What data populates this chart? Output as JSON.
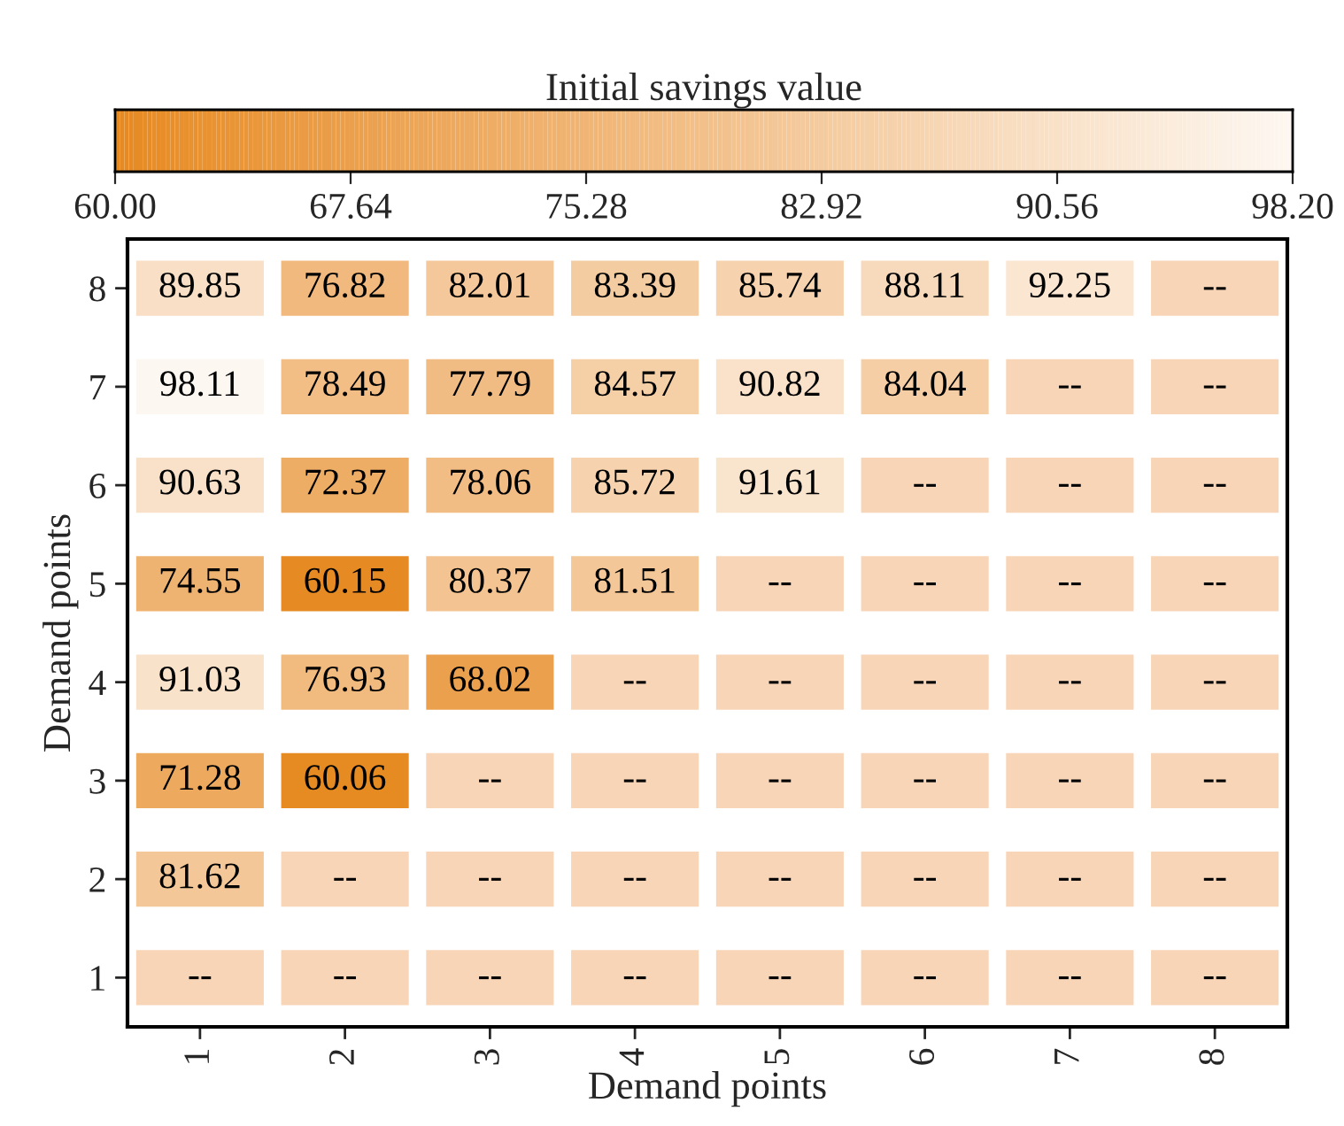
{
  "chart_data": {
    "type": "heatmap",
    "xlabel": "Demand points",
    "ylabel": "Demand points",
    "clabel": "Initial savings value",
    "categories": [
      "1",
      "2",
      "3",
      "4",
      "5",
      "6",
      "7",
      "8"
    ],
    "y_categories": [
      "8",
      "7",
      "6",
      "5",
      "4",
      "3",
      "2",
      "1"
    ],
    "cells": [
      [
        89.85,
        76.82,
        82.01,
        83.39,
        85.74,
        88.11,
        92.25,
        null
      ],
      [
        98.11,
        78.49,
        77.79,
        84.57,
        90.82,
        84.04,
        null,
        null
      ],
      [
        90.63,
        72.37,
        78.06,
        85.72,
        91.61,
        null,
        null,
        null
      ],
      [
        74.55,
        60.15,
        80.37,
        81.51,
        null,
        null,
        null,
        null
      ],
      [
        91.03,
        76.93,
        68.02,
        null,
        null,
        null,
        null,
        null
      ],
      [
        71.28,
        60.06,
        null,
        null,
        null,
        null,
        null,
        null
      ],
      [
        81.62,
        null,
        null,
        null,
        null,
        null,
        null,
        null
      ],
      [
        null,
        null,
        null,
        null,
        null,
        null,
        null,
        null
      ]
    ],
    "cell_labels": [
      [
        "89.85",
        "76.82",
        "82.01",
        "83.39",
        "85.74",
        "88.11",
        "92.25",
        "--"
      ],
      [
        "98.11",
        "78.49",
        "77.79",
        "84.57",
        "90.82",
        "84.04",
        "--",
        "--"
      ],
      [
        "90.63",
        "72.37",
        "78.06",
        "85.72",
        "91.61",
        "--",
        "--",
        "--"
      ],
      [
        "74.55",
        "60.15",
        "80.37",
        "81.51",
        "--",
        "--",
        "--",
        "--"
      ],
      [
        "91.03",
        "76.93",
        "68.02",
        "--",
        "--",
        "--",
        "--",
        "--"
      ],
      [
        "71.28",
        "60.06",
        "--",
        "--",
        "--",
        "--",
        "--",
        "--"
      ],
      [
        "81.62",
        "--",
        "--",
        "--",
        "--",
        "--",
        "--",
        "--"
      ],
      [
        "--",
        "--",
        "--",
        "--",
        "--",
        "--",
        "--",
        "--"
      ]
    ],
    "clim": [
      60.0,
      98.2
    ],
    "cticks": [
      {
        "value": 60.0,
        "label": "60.00"
      },
      {
        "value": 67.64,
        "label": "67.64"
      },
      {
        "value": 75.28,
        "label": "75.28"
      },
      {
        "value": 82.92,
        "label": "82.92"
      },
      {
        "value": 90.56,
        "label": "90.56"
      },
      {
        "value": 98.2,
        "label": "98.20"
      }
    ]
  }
}
